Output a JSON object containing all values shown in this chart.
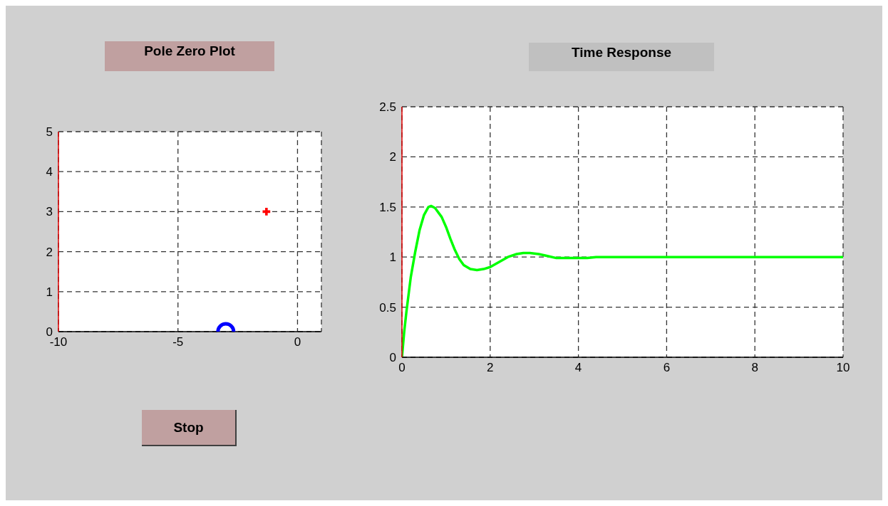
{
  "chart_data": [
    {
      "type": "scatter",
      "title": "Pole Zero Plot",
      "xlim": [
        -10,
        1
      ],
      "xticks": [
        -10,
        -5,
        0
      ],
      "ylim": [
        0,
        5
      ],
      "yticks": [
        0,
        1,
        2,
        3,
        4,
        5
      ],
      "grid": true,
      "annotations": [
        "Stop"
      ],
      "series": [
        {
          "color": "#0000ff",
          "marker": "circle",
          "x": [
            -3
          ],
          "values": [
            0
          ]
        },
        {
          "color": "#ff0000",
          "marker": "cross",
          "x": [
            -1.3
          ],
          "values": [
            3
          ]
        }
      ]
    },
    {
      "type": "line",
      "title": "Time Response",
      "xlim": [
        0,
        10
      ],
      "xticks": [
        0,
        2,
        4,
        6,
        8,
        10
      ],
      "ylim": [
        0,
        2.5
      ],
      "yticks": [
        0,
        0.5,
        1,
        1.5,
        2,
        2.5
      ],
      "grid": true,
      "color": "#00ff00",
      "x": [
        0,
        0.05,
        0.1,
        0.2,
        0.3,
        0.4,
        0.5,
        0.6,
        0.66,
        0.75,
        0.9,
        1.0,
        1.1,
        1.2,
        1.3,
        1.4,
        1.55,
        1.7,
        1.85,
        2.0,
        2.2,
        2.4,
        2.6,
        2.75,
        2.9,
        3.1,
        3.3,
        3.5,
        3.8,
        4.2,
        4.4,
        5,
        6,
        7,
        8,
        9,
        10
      ],
      "values": [
        0,
        0.25,
        0.45,
        0.8,
        1.05,
        1.27,
        1.42,
        1.5,
        1.51,
        1.49,
        1.4,
        1.3,
        1.18,
        1.07,
        0.98,
        0.92,
        0.88,
        0.87,
        0.88,
        0.9,
        0.95,
        1.0,
        1.03,
        1.04,
        1.04,
        1.03,
        1.01,
        0.99,
        0.99,
        0.99,
        1.0,
        1,
        1,
        1,
        1,
        1,
        1
      ]
    }
  ]
}
